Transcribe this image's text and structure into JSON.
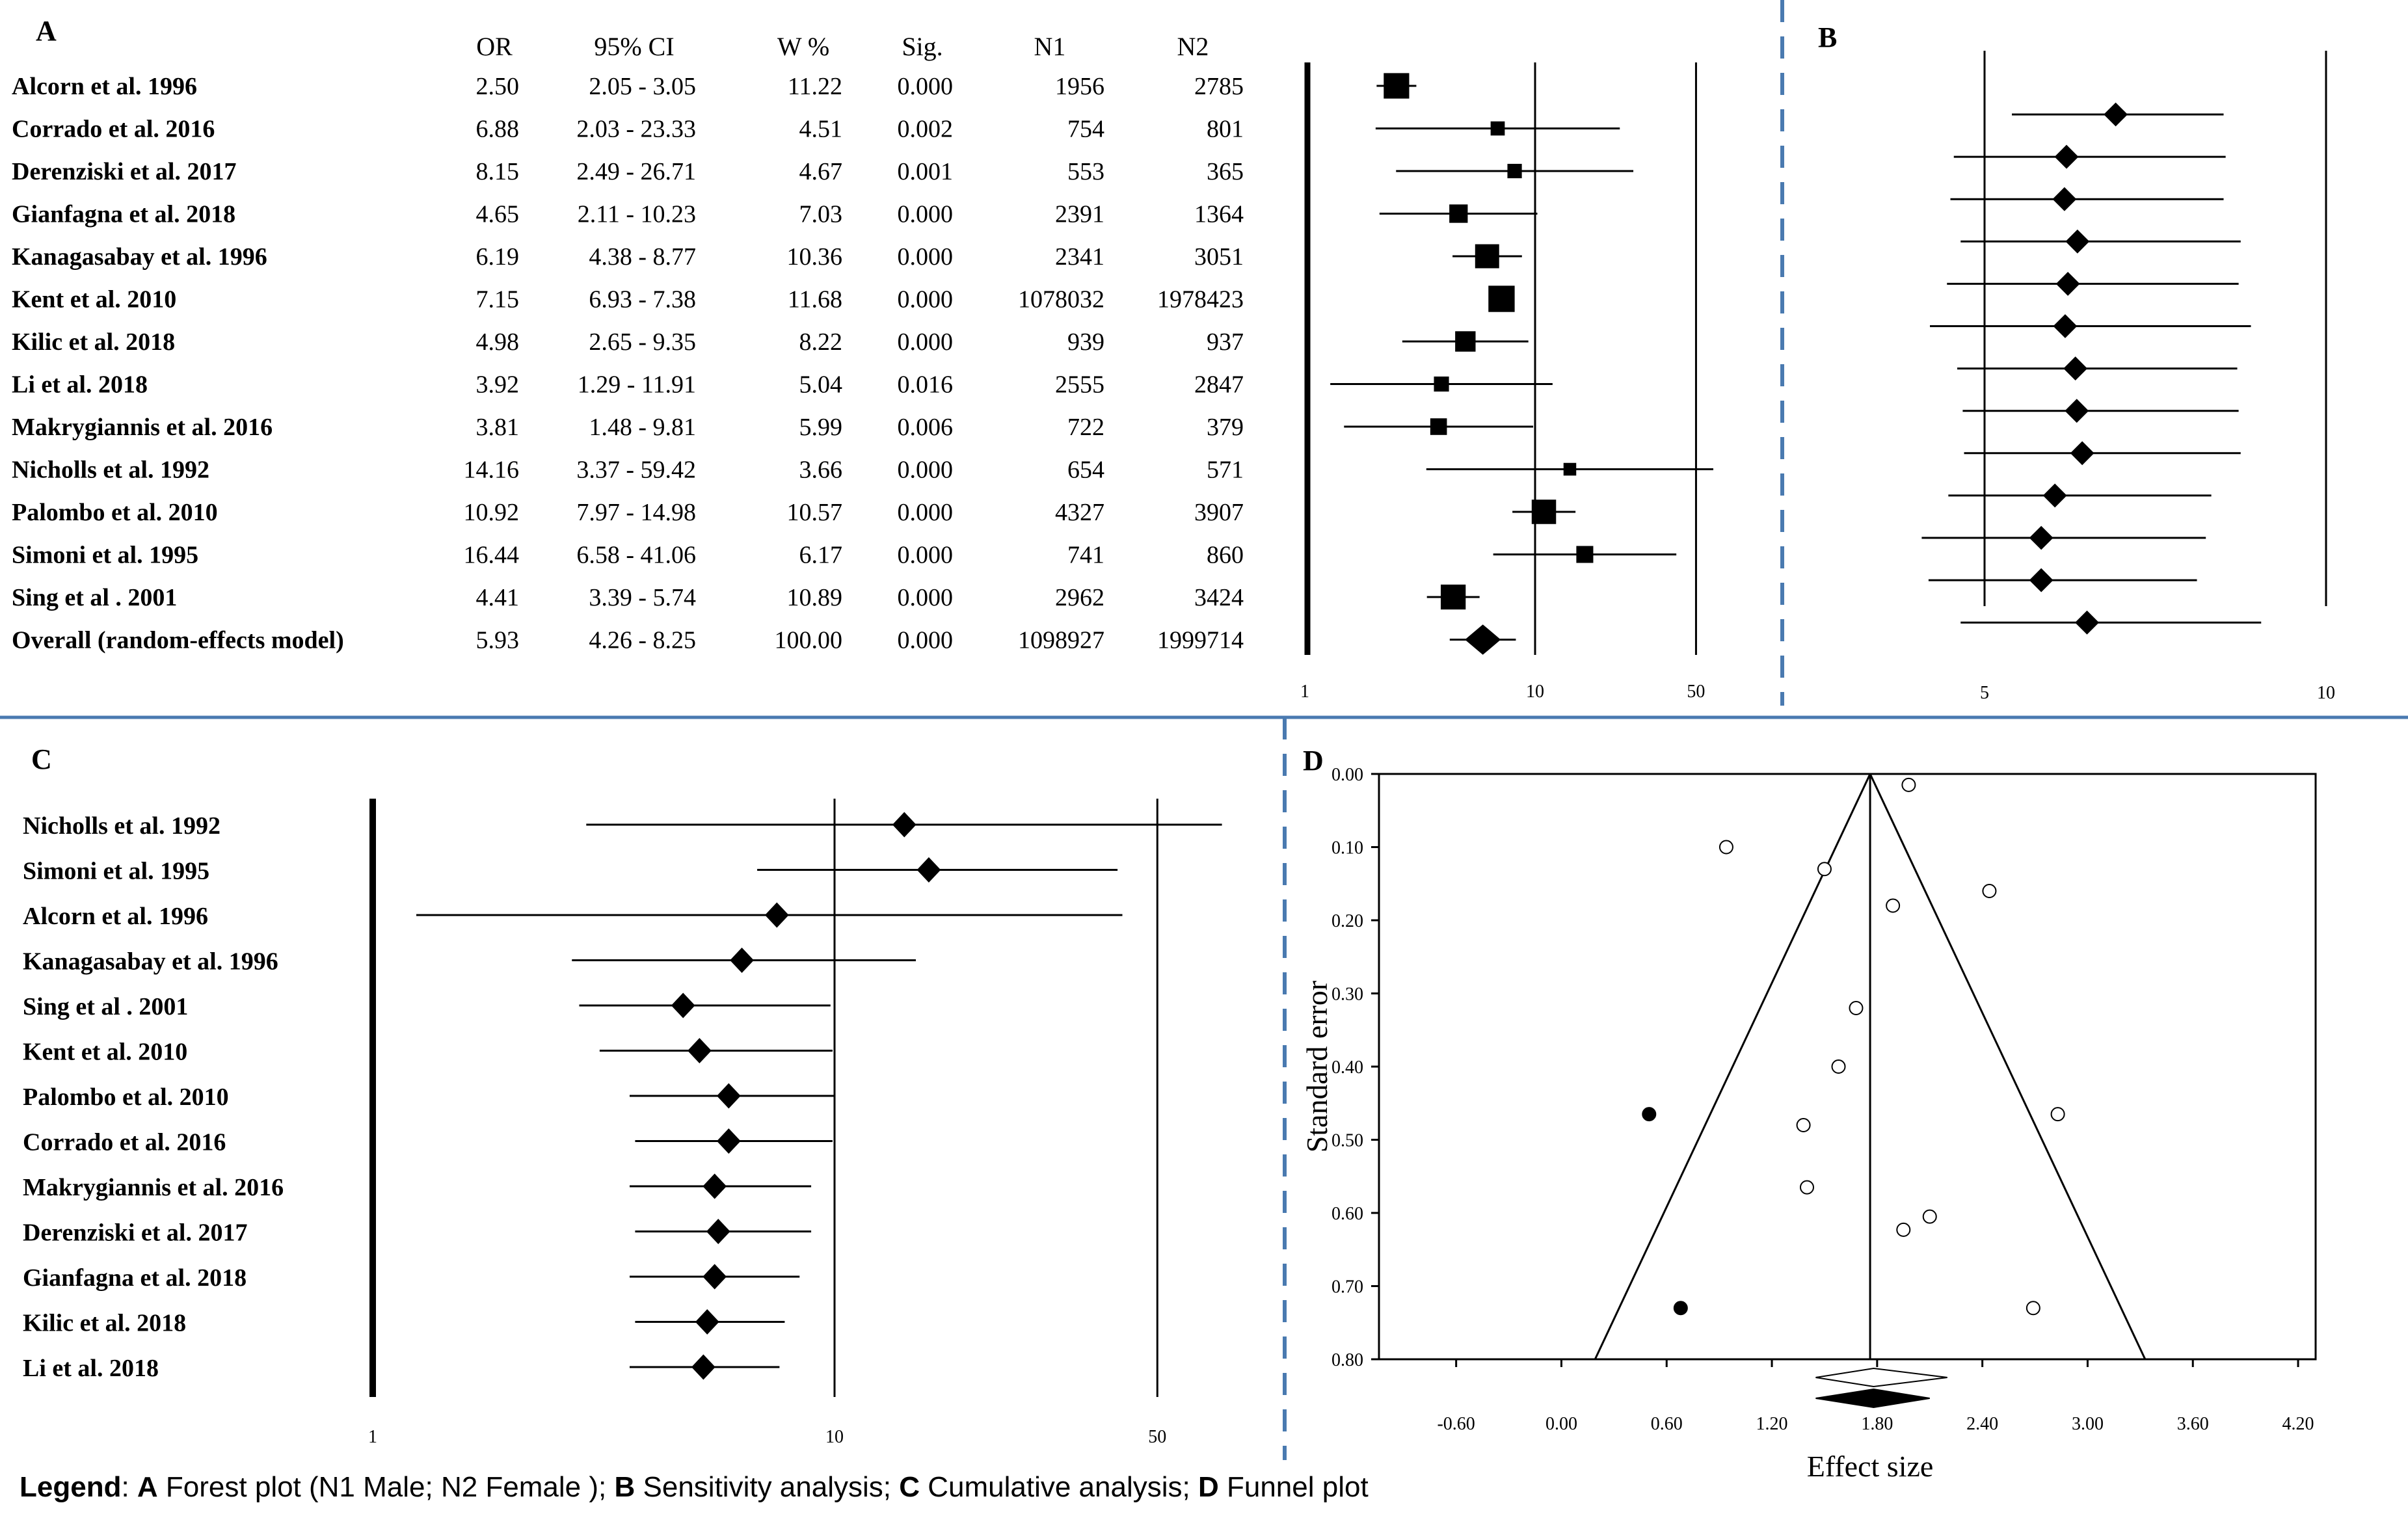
{
  "legend": {
    "prefix": "Legend",
    "a_key": "A",
    "a_text": "Forest plot (N1 Male; N2 Female );",
    "b_key": "B",
    "b_text": "Sensitivity analysis;",
    "c_key": "C",
    "c_text": "Cumulative analysis;",
    "d_key": "D",
    "d_text": "Funnel plot"
  },
  "chart_data": [
    {
      "panel": "A",
      "type": "forest",
      "columns": [
        "OR",
        "95% CI",
        "W %",
        "Sig.",
        "N1",
        "N2"
      ],
      "x_ticks": [
        "1",
        "10",
        "50"
      ],
      "x_scale": "log",
      "rows": [
        {
          "study": "Alcorn et al. 1996",
          "or_text": "2.50",
          "ci_text": "2.05 - 3.05",
          "w_text": "11.22",
          "sig": "0.000",
          "n1": "1956",
          "n2": "2785",
          "or": 2.5,
          "lo": 2.05,
          "hi": 3.05,
          "w": 11.22
        },
        {
          "study": "Corrado et al. 2016",
          "or_text": "6.88",
          "ci_text": "2.03 - 23.33",
          "w_text": "4.51",
          "sig": "0.002",
          "n1": "754",
          "n2": "801",
          "or": 6.88,
          "lo": 2.03,
          "hi": 23.33,
          "w": 4.51
        },
        {
          "study": "Derenziski et al. 2017",
          "or_text": "8.15",
          "ci_text": "2.49 - 26.71",
          "w_text": "4.67",
          "sig": "0.001",
          "n1": "553",
          "n2": "365",
          "or": 8.15,
          "lo": 2.49,
          "hi": 26.71,
          "w": 4.67
        },
        {
          "study": "Gianfagna et al. 2018",
          "or_text": "4.65",
          "ci_text": "2.11 - 10.23",
          "w_text": "7.03",
          "sig": "0.000",
          "n1": "2391",
          "n2": "1364",
          "or": 4.65,
          "lo": 2.11,
          "hi": 10.23,
          "w": 7.03
        },
        {
          "study": "Kanagasabay et al. 1996",
          "or_text": "6.19",
          "ci_text": "4.38 - 8.77",
          "w_text": "10.36",
          "sig": "0.000",
          "n1": "2341",
          "n2": "3051",
          "or": 6.19,
          "lo": 4.38,
          "hi": 8.77,
          "w": 10.36
        },
        {
          "study": "Kent et al. 2010",
          "or_text": "7.15",
          "ci_text": "6.93 - 7.38",
          "w_text": "11.68",
          "sig": "0.000",
          "n1": "1078032",
          "n2": "1978423",
          "or": 7.15,
          "lo": 6.93,
          "hi": 7.38,
          "w": 11.68
        },
        {
          "study": "Kilic et al. 2018",
          "or_text": "4.98",
          "ci_text": "2.65 - 9.35",
          "w_text": "8.22",
          "sig": "0.000",
          "n1": "939",
          "n2": "937",
          "or": 4.98,
          "lo": 2.65,
          "hi": 9.35,
          "w": 8.22
        },
        {
          "study": "Li et al. 2018",
          "or_text": "3.92",
          "ci_text": "1.29 - 11.91",
          "w_text": "5.04",
          "sig": "0.016",
          "n1": "2555",
          "n2": "2847",
          "or": 3.92,
          "lo": 1.29,
          "hi": 11.91,
          "w": 5.04
        },
        {
          "study": "Makrygiannis  et al. 2016",
          "or_text": "3.81",
          "ci_text": "1.48 - 9.81",
          "w_text": "5.99",
          "sig": "0.006",
          "n1": "722",
          "n2": "379",
          "or": 3.81,
          "lo": 1.48,
          "hi": 9.81,
          "w": 5.99
        },
        {
          "study": "Nicholls et al. 1992",
          "or_text": "14.16",
          "ci_text": "3.37 - 59.42",
          "w_text": "3.66",
          "sig": "0.000",
          "n1": "654",
          "n2": "571",
          "or": 14.16,
          "lo": 3.37,
          "hi": 59.42,
          "w": 3.66
        },
        {
          "study": "Palombo et al. 2010",
          "or_text": "10.92",
          "ci_text": "7.97 - 14.98",
          "w_text": "10.57",
          "sig": "0.000",
          "n1": "4327",
          "n2": "3907",
          "or": 10.92,
          "lo": 7.97,
          "hi": 14.98,
          "w": 10.57
        },
        {
          "study": "Simoni et al. 1995",
          "or_text": "16.44",
          "ci_text": "6.58 - 41.06",
          "w_text": "6.17",
          "sig": "0.000",
          "n1": "741",
          "n2": "860",
          "or": 16.44,
          "lo": 6.58,
          "hi": 41.06,
          "w": 6.17
        },
        {
          "study": "Sing et al . 2001",
          "or_text": "4.41",
          "ci_text": "3.39 - 5.74",
          "w_text": "10.89",
          "sig": "0.000",
          "n1": "2962",
          "n2": "3424",
          "or": 4.41,
          "lo": 3.39,
          "hi": 5.74,
          "w": 10.89
        }
      ],
      "overall": {
        "study": "Overall (random-effects model)",
        "or_text": "5.93",
        "ci_text": "4.26 - 8.25",
        "w_text": "100.00",
        "sig": "0.000",
        "n1": "1098927",
        "n2": "1999714",
        "or": 5.93,
        "lo": 4.26,
        "hi": 8.25
      }
    },
    {
      "panel": "B",
      "type": "forest-sensitivity",
      "x_ticks": [
        "5",
        "10"
      ],
      "x_range": [
        3.9,
        10.6
      ],
      "points": [
        {
          "or": 6.92,
          "lo": 5.4,
          "hi": 8.5
        },
        {
          "or": 6.2,
          "lo": 4.55,
          "hi": 8.53
        },
        {
          "or": 6.17,
          "lo": 4.5,
          "hi": 8.5
        },
        {
          "or": 6.36,
          "lo": 4.65,
          "hi": 8.75
        },
        {
          "or": 6.22,
          "lo": 4.45,
          "hi": 8.72
        },
        {
          "or": 6.18,
          "lo": 4.2,
          "hi": 8.9
        },
        {
          "or": 6.33,
          "lo": 4.6,
          "hi": 8.7
        },
        {
          "or": 6.35,
          "lo": 4.68,
          "hi": 8.72
        },
        {
          "or": 6.43,
          "lo": 4.7,
          "hi": 8.75
        },
        {
          "or": 6.03,
          "lo": 4.47,
          "hi": 8.32
        },
        {
          "or": 5.83,
          "lo": 4.08,
          "hi": 8.24
        },
        {
          "or": 5.83,
          "lo": 4.18,
          "hi": 8.11
        },
        {
          "or": 6.5,
          "lo": 4.65,
          "hi": 9.05
        }
      ]
    },
    {
      "panel": "C",
      "type": "forest-cumulative",
      "x_ticks": [
        "1",
        "10",
        "50"
      ],
      "x_scale": "log",
      "rows": [
        {
          "study": "Nicholls et al. 1992",
          "or": 14.16,
          "lo": 2.9,
          "hi": 69
        },
        {
          "study": "Simoni et al. 1995",
          "or": 16.0,
          "lo": 6.8,
          "hi": 41.0
        },
        {
          "study": "Alcorn et al. 1996",
          "or": 7.5,
          "lo": 1.2,
          "hi": 42.0
        },
        {
          "study": "Kanagasabay et al. 1996",
          "or": 6.3,
          "lo": 2.7,
          "hi": 15.0
        },
        {
          "study": "Sing et al . 2001",
          "or": 4.7,
          "lo": 2.8,
          "hi": 9.8
        },
        {
          "study": "Kent et al. 2010",
          "or": 5.1,
          "lo": 3.1,
          "hi": 9.9
        },
        {
          "study": "Palombo et al. 2010",
          "or": 5.9,
          "lo": 3.6,
          "hi": 10.0
        },
        {
          "study": "Corrado et al.  2016",
          "or": 5.9,
          "lo": 3.7,
          "hi": 9.9
        },
        {
          "study": "Makrygiannis  et al. 2016",
          "or": 5.5,
          "lo": 3.6,
          "hi": 8.9
        },
        {
          "study": "Derenziski et al. 2017",
          "or": 5.6,
          "lo": 3.7,
          "hi": 8.9
        },
        {
          "study": "Gianfagna et al. 2018",
          "or": 5.5,
          "lo": 3.6,
          "hi": 8.4
        },
        {
          "study": "Kilic et al. 2018",
          "or": 5.3,
          "lo": 3.7,
          "hi": 7.8
        },
        {
          "study": "Li et al. 2018",
          "or": 5.2,
          "lo": 3.6,
          "hi": 7.6
        }
      ]
    },
    {
      "panel": "D",
      "type": "funnel",
      "xlabel": "Effect size",
      "ylabel": "Standard error",
      "x_ticks": [
        "-0.60",
        "0.00",
        "0.60",
        "1.20",
        "1.80",
        "2.40",
        "3.00",
        "3.60",
        "4.20"
      ],
      "y_ticks": [
        "0.00",
        "0.10",
        "0.20",
        "0.30",
        "0.40",
        "0.50",
        "0.60",
        "0.70",
        "0.80"
      ],
      "xlim": [
        -1.04,
        4.3
      ],
      "ylim": [
        0,
        0.8
      ],
      "center": 1.76,
      "observed": [
        {
          "x": 1.98,
          "se": 0.015
        },
        {
          "x": 0.94,
          "se": 0.1
        },
        {
          "x": 1.5,
          "se": 0.13
        },
        {
          "x": 2.44,
          "se": 0.16
        },
        {
          "x": 1.89,
          "se": 0.18
        },
        {
          "x": 1.68,
          "se": 0.32
        },
        {
          "x": 1.58,
          "se": 0.4
        },
        {
          "x": 2.83,
          "se": 0.465
        },
        {
          "x": 1.38,
          "se": 0.48
        },
        {
          "x": 1.4,
          "se": 0.565
        },
        {
          "x": 2.1,
          "se": 0.605
        },
        {
          "x": 1.95,
          "se": 0.623
        },
        {
          "x": 2.69,
          "se": 0.73
        }
      ],
      "imputed": [
        {
          "x": 0.5,
          "se": 0.465
        },
        {
          "x": 0.68,
          "se": 0.73
        }
      ],
      "pooled_observed": {
        "est": 1.78,
        "lo": 1.45,
        "hi": 2.2
      },
      "pooled_adjusted": {
        "est": 1.78,
        "lo": 1.45,
        "hi": 2.1
      }
    }
  ]
}
